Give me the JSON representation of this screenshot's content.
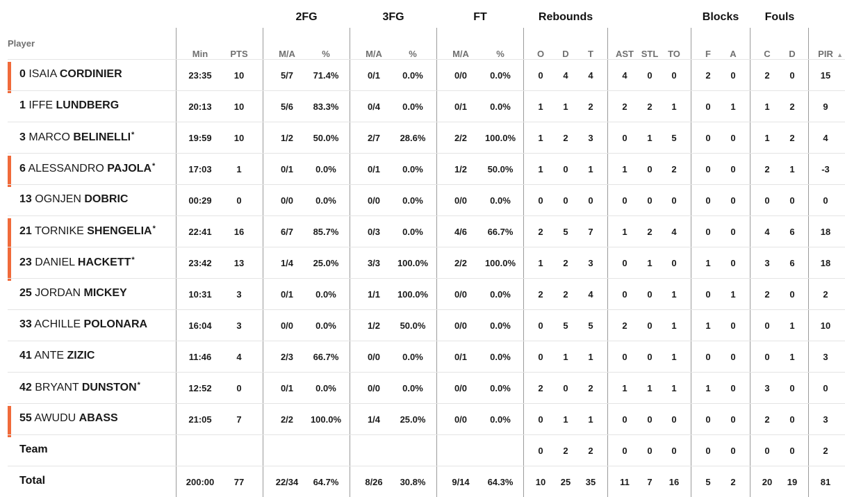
{
  "accent_color": "#f06a3a",
  "group_headers": [
    {
      "label": "2FG"
    },
    {
      "label": "3FG"
    },
    {
      "label": "FT"
    },
    {
      "label": "Rebounds"
    },
    {
      "label": "Blocks"
    },
    {
      "label": "Fouls"
    }
  ],
  "player_header": "Player",
  "sub_headers": [
    "Min",
    "PTS",
    "M/A",
    "%",
    "M/A",
    "%",
    "M/A",
    "%",
    "O",
    "D",
    "T",
    "AST",
    "STL",
    "TO",
    "F",
    "A",
    "C",
    "D",
    "PIR"
  ],
  "players": [
    {
      "number": "0",
      "first": "ISAIA",
      "last": "CORDINIER",
      "starter": false,
      "accent": true,
      "stats": [
        "23:35",
        "10",
        "5/7",
        "71.4%",
        "0/1",
        "0.0%",
        "0/0",
        "0.0%",
        "0",
        "4",
        "4",
        "4",
        "0",
        "0",
        "2",
        "0",
        "2",
        "0",
        "15"
      ]
    },
    {
      "number": "1",
      "first": "IFFE",
      "last": "LUNDBERG",
      "starter": false,
      "accent": false,
      "stats": [
        "20:13",
        "10",
        "5/6",
        "83.3%",
        "0/4",
        "0.0%",
        "0/1",
        "0.0%",
        "1",
        "1",
        "2",
        "2",
        "2",
        "1",
        "0",
        "1",
        "1",
        "2",
        "9"
      ]
    },
    {
      "number": "3",
      "first": "MARCO",
      "last": "BELINELLI",
      "starter": true,
      "accent": false,
      "stats": [
        "19:59",
        "10",
        "1/2",
        "50.0%",
        "2/7",
        "28.6%",
        "2/2",
        "100.0%",
        "1",
        "2",
        "3",
        "0",
        "1",
        "5",
        "0",
        "0",
        "1",
        "2",
        "4"
      ]
    },
    {
      "number": "6",
      "first": "ALESSANDRO",
      "last": "PAJOLA",
      "starter": true,
      "accent": true,
      "stats": [
        "17:03",
        "1",
        "0/1",
        "0.0%",
        "0/1",
        "0.0%",
        "1/2",
        "50.0%",
        "1",
        "0",
        "1",
        "1",
        "0",
        "2",
        "0",
        "0",
        "2",
        "1",
        "-3"
      ]
    },
    {
      "number": "13",
      "first": "OGNJEN",
      "last": "DOBRIC",
      "starter": false,
      "accent": false,
      "stats": [
        "00:29",
        "0",
        "0/0",
        "0.0%",
        "0/0",
        "0.0%",
        "0/0",
        "0.0%",
        "0",
        "0",
        "0",
        "0",
        "0",
        "0",
        "0",
        "0",
        "0",
        "0",
        "0"
      ]
    },
    {
      "number": "21",
      "first": "TORNIKE",
      "last": "SHENGELIA",
      "starter": true,
      "accent": true,
      "stats": [
        "22:41",
        "16",
        "6/7",
        "85.7%",
        "0/3",
        "0.0%",
        "4/6",
        "66.7%",
        "2",
        "5",
        "7",
        "1",
        "2",
        "4",
        "0",
        "0",
        "4",
        "6",
        "18"
      ]
    },
    {
      "number": "23",
      "first": "DANIEL",
      "last": "HACKETT",
      "starter": true,
      "accent": true,
      "stats": [
        "23:42",
        "13",
        "1/4",
        "25.0%",
        "3/3",
        "100.0%",
        "2/2",
        "100.0%",
        "1",
        "2",
        "3",
        "0",
        "1",
        "0",
        "1",
        "0",
        "3",
        "6",
        "18"
      ]
    },
    {
      "number": "25",
      "first": "JORDAN",
      "last": "MICKEY",
      "starter": false,
      "accent": false,
      "stats": [
        "10:31",
        "3",
        "0/1",
        "0.0%",
        "1/1",
        "100.0%",
        "0/0",
        "0.0%",
        "2",
        "2",
        "4",
        "0",
        "0",
        "1",
        "0",
        "1",
        "2",
        "0",
        "2"
      ]
    },
    {
      "number": "33",
      "first": "ACHILLE",
      "last": "POLONARA",
      "starter": false,
      "accent": false,
      "stats": [
        "16:04",
        "3",
        "0/0",
        "0.0%",
        "1/2",
        "50.0%",
        "0/0",
        "0.0%",
        "0",
        "5",
        "5",
        "2",
        "0",
        "1",
        "1",
        "0",
        "0",
        "1",
        "10"
      ]
    },
    {
      "number": "41",
      "first": "ANTE",
      "last": "ZIZIC",
      "starter": false,
      "accent": false,
      "stats": [
        "11:46",
        "4",
        "2/3",
        "66.7%",
        "0/0",
        "0.0%",
        "0/1",
        "0.0%",
        "0",
        "1",
        "1",
        "0",
        "0",
        "1",
        "0",
        "0",
        "0",
        "1",
        "3"
      ]
    },
    {
      "number": "42",
      "first": "BRYANT",
      "last": "DUNSTON",
      "starter": true,
      "accent": false,
      "stats": [
        "12:52",
        "0",
        "0/1",
        "0.0%",
        "0/0",
        "0.0%",
        "0/0",
        "0.0%",
        "2",
        "0",
        "2",
        "1",
        "1",
        "1",
        "1",
        "0",
        "3",
        "0",
        "0"
      ]
    },
    {
      "number": "55",
      "first": "AWUDU",
      "last": "ABASS",
      "starter": false,
      "accent": true,
      "stats": [
        "21:05",
        "7",
        "2/2",
        "100.0%",
        "1/4",
        "25.0%",
        "0/0",
        "0.0%",
        "0",
        "1",
        "1",
        "0",
        "0",
        "0",
        "0",
        "0",
        "2",
        "0",
        "3"
      ]
    }
  ],
  "team_row": {
    "label": "Team",
    "stats": [
      "",
      "",
      "",
      "",
      "",
      "",
      "",
      "",
      "0",
      "2",
      "2",
      "0",
      "0",
      "0",
      "0",
      "0",
      "0",
      "0",
      "2"
    ]
  },
  "total_row": {
    "label": "Total",
    "stats": [
      "200:00",
      "77",
      "22/34",
      "64.7%",
      "8/26",
      "30.8%",
      "9/14",
      "64.3%",
      "10",
      "25",
      "35",
      "11",
      "7",
      "16",
      "5",
      "2",
      "20",
      "19",
      "81"
    ]
  }
}
